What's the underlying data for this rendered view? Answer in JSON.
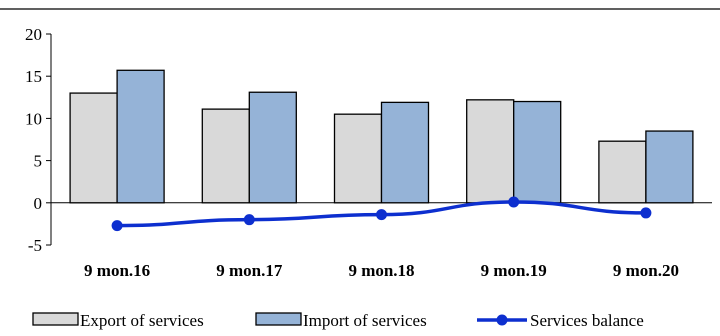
{
  "chart_data": {
    "type": "bar",
    "categories": [
      "9 mon.16",
      "9 mon.17",
      "9 mon.18",
      "9 mon.19",
      "9 mon.20"
    ],
    "series": [
      {
        "name": "Export of services",
        "kind": "bar",
        "color": "#d9d9d9",
        "values": [
          13.0,
          11.1,
          10.5,
          12.2,
          7.3
        ]
      },
      {
        "name": "Import of services",
        "kind": "bar",
        "color": "#95b3d7",
        "values": [
          15.7,
          13.1,
          11.9,
          12.0,
          8.5
        ]
      },
      {
        "name": "Services balance",
        "kind": "line",
        "color": "#0d2fcf",
        "values": [
          -2.7,
          -2.0,
          -1.4,
          0.1,
          -1.2
        ]
      }
    ],
    "ylim": [
      -5,
      20
    ],
    "yticks": [
      -5,
      0,
      5,
      10,
      15,
      20
    ],
    "title": "",
    "xlabel": "",
    "ylabel": "",
    "legend_position": "bottom",
    "grid": false
  }
}
